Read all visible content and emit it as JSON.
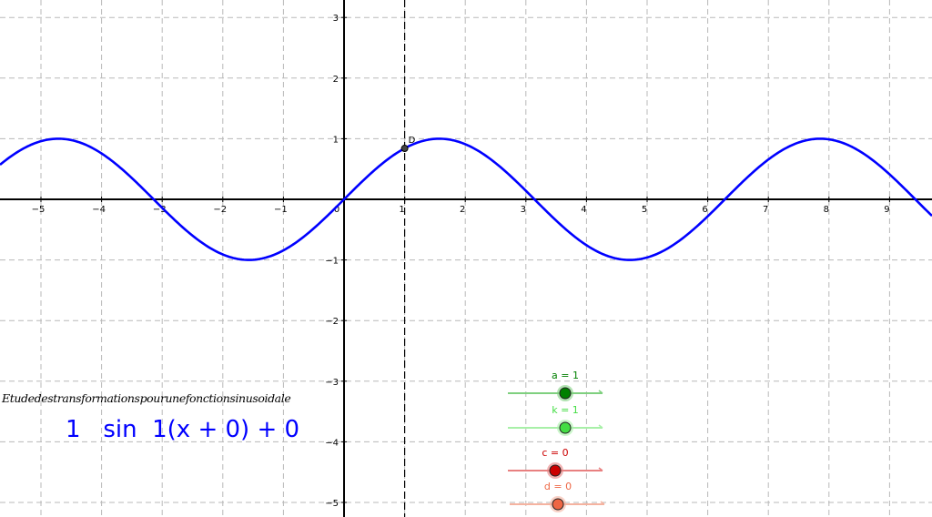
{
  "chart_data": {
    "type": "line",
    "title": "Etudedestransformationspourunefonctionsinusoidale",
    "xlabel": "",
    "ylabel": "",
    "xlim": [
      -5.65,
      9.65
    ],
    "ylim": [
      -5.2,
      3.3
    ],
    "x_ticks": [
      "−5",
      "−4",
      "−3",
      "−2",
      "−1",
      "0",
      "1",
      "2",
      "3",
      "4",
      "5",
      "6",
      "7",
      "8",
      "9"
    ],
    "y_ticks": [
      "3",
      "2",
      "1",
      "−1",
      "−2",
      "−3",
      "−4",
      "−5"
    ],
    "grid": true,
    "series": [
      {
        "function": "y = 1·sin(1·(x + 0)) + 0",
        "amplitude": 1,
        "frequency": 1,
        "phase_shift": 0,
        "vertical_shift": 0,
        "color": "#0000ff"
      }
    ],
    "vertical_line_x": 1,
    "point": {
      "label": "D",
      "x": 1,
      "y": 0.84
    }
  },
  "formula": "1   sin  1(x + 0) + 0",
  "sliders": [
    {
      "label": "a = 1",
      "value": 1,
      "color": "#008000",
      "track_color": "#7fd07f"
    },
    {
      "label": "k = 1",
      "value": 1,
      "color": "#44dd44",
      "track_color": "#a8f0a8"
    },
    {
      "label": "c = 0",
      "value": 0,
      "color": "#cc0000",
      "track_color": "#e88080"
    },
    {
      "label": "d = 0",
      "value": 0,
      "color": "#ee6644",
      "track_color": "#f5b3a0"
    }
  ]
}
